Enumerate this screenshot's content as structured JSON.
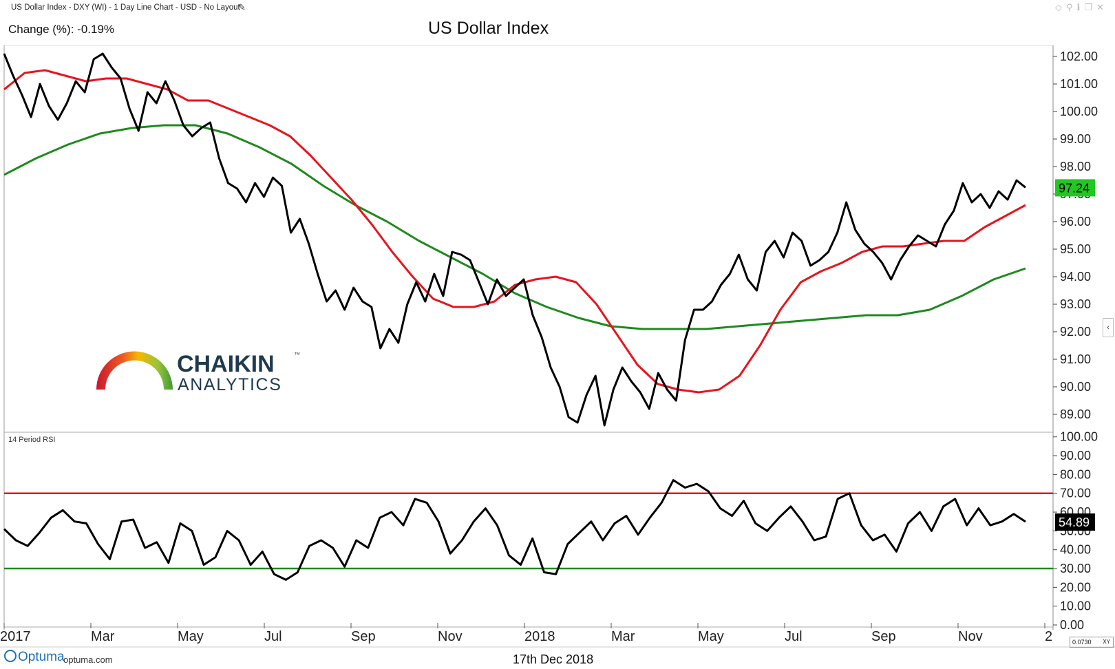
{
  "header": {
    "chart_info": "US Dollar Index - DXY (WI) - 1 Day Line Chart - USD - No Layout",
    "change_label": "Change (%): -0.19%",
    "title": "US Dollar Index"
  },
  "logo": {
    "line1": "CHAIKIN",
    "tm": "™",
    "line2": "ANALYTICS"
  },
  "rsi_panel_label": "14 Period RSI",
  "footer": {
    "brand": "Optuma",
    "url": "optuma.com",
    "date": "17th Dec 2018",
    "xy_value": "0.0730",
    "xy_label": "XY"
  },
  "colors": {
    "price": "#000000",
    "ma50": "#e8141b",
    "ma200": "#1e8a1e",
    "rsi_upper": "#e8141b",
    "rsi_lower": "#1e8a1e",
    "price_tag": "#22c722"
  },
  "chart_data": [
    {
      "type": "line",
      "title": "US Dollar Index",
      "x_tick_labels": [
        "2017",
        "Mar",
        "May",
        "Jul",
        "Sep",
        "Nov",
        "2018",
        "Mar",
        "May",
        "Jul",
        "Sep",
        "Nov",
        "2"
      ],
      "y_tick_labels": [
        "89.00",
        "90.00",
        "91.00",
        "92.00",
        "93.00",
        "94.00",
        "95.00",
        "96.00",
        "97.00",
        "98.00",
        "99.00",
        "100.00",
        "101.00",
        "102.00"
      ],
      "ylim": [
        88.4,
        102.3
      ],
      "last_value_label": "97.24",
      "series": [
        {
          "values": [
            102.1,
            101.3,
            100.6,
            99.8,
            101.0,
            100.2,
            99.7,
            100.3,
            101.1,
            100.7,
            101.9,
            102.1,
            101.6,
            101.2,
            100.1,
            99.3,
            100.7,
            100.3,
            101.1,
            100.4,
            99.5,
            99.1,
            99.4,
            99.6,
            98.3,
            97.4,
            97.2,
            96.7,
            97.4,
            96.9,
            97.6,
            97.3,
            95.6,
            96.1,
            95.2,
            94.1,
            93.1,
            93.5,
            92.8,
            93.6,
            93.1,
            92.9,
            91.4,
            92.1,
            91.6,
            93.0,
            93.8,
            93.1,
            94.1,
            93.3,
            94.9,
            94.8,
            94.6,
            93.8,
            93.0,
            93.9,
            93.3,
            93.6,
            93.9,
            92.6,
            91.8,
            90.7,
            90.0,
            88.9,
            88.7,
            89.7,
            90.4,
            88.6,
            89.9,
            90.7,
            90.2,
            89.8,
            89.2,
            90.5,
            89.9,
            89.5,
            91.7,
            92.8,
            92.8,
            93.1,
            93.7,
            94.1,
            94.8,
            93.9,
            93.5,
            94.9,
            95.3,
            94.7,
            95.6,
            95.3,
            94.4,
            94.6,
            94.9,
            95.6,
            96.7,
            95.7,
            95.2,
            94.9,
            94.5,
            93.9,
            94.6,
            95.1,
            95.5,
            95.3,
            95.1,
            95.9,
            96.4,
            97.4,
            96.7,
            97.0,
            96.5,
            97.1,
            96.8,
            97.5,
            97.24
          ]
        },
        {
          "values": [
            100.8,
            101.4,
            101.5,
            101.3,
            101.1,
            101.2,
            101.2,
            101.0,
            100.8,
            100.4,
            100.4,
            100.1,
            99.8,
            99.5,
            99.1,
            98.4,
            97.6,
            96.8,
            95.9,
            94.9,
            94.0,
            93.2,
            92.9,
            92.9,
            93.1,
            93.7,
            93.9,
            94.0,
            93.8,
            93.0,
            91.9,
            90.8,
            90.1,
            89.9,
            89.8,
            89.9,
            90.4,
            91.5,
            92.8,
            93.8,
            94.2,
            94.5,
            94.9,
            95.1,
            95.1,
            95.2,
            95.3,
            95.3,
            95.8,
            96.2,
            96.6
          ]
        },
        {
          "values": [
            97.7,
            98.3,
            98.8,
            99.2,
            99.4,
            99.5,
            99.5,
            99.2,
            98.7,
            98.1,
            97.3,
            96.6,
            96.0,
            95.3,
            94.7,
            94.1,
            93.4,
            92.9,
            92.5,
            92.2,
            92.1,
            92.1,
            92.1,
            92.2,
            92.3,
            92.4,
            92.5,
            92.6,
            92.6,
            92.8,
            93.3,
            93.9,
            94.3
          ]
        }
      ]
    },
    {
      "type": "line",
      "title": "14 Period RSI",
      "y_tick_labels": [
        "0.00",
        "10.00",
        "20.00",
        "30.00",
        "40.00",
        "50.00",
        "60.00",
        "70.00",
        "80.00",
        "90.00",
        "100.00"
      ],
      "ylim": [
        0,
        101
      ],
      "reference_lines": [
        70,
        30
      ],
      "last_value_label": "54.89",
      "series": [
        {
          "values": [
            51,
            45,
            42,
            49,
            57,
            61,
            55,
            54,
            43,
            35,
            55,
            56,
            41,
            44,
            33,
            54,
            50,
            32,
            36,
            50,
            45,
            32,
            39,
            27,
            24,
            28,
            42,
            45,
            41,
            31,
            45,
            41,
            57,
            60,
            53,
            67,
            65,
            55,
            38,
            45,
            55,
            62,
            53,
            37,
            32,
            46,
            28,
            27,
            43,
            49,
            55,
            45,
            54,
            58,
            48,
            57,
            65,
            77,
            73,
            75,
            71,
            62,
            58,
            66,
            54,
            50,
            57,
            63,
            55,
            45,
            47,
            67,
            70,
            53,
            45,
            48,
            39,
            54,
            60,
            50,
            63,
            67,
            53,
            62,
            53,
            55,
            59,
            54.89
          ]
        }
      ]
    }
  ]
}
